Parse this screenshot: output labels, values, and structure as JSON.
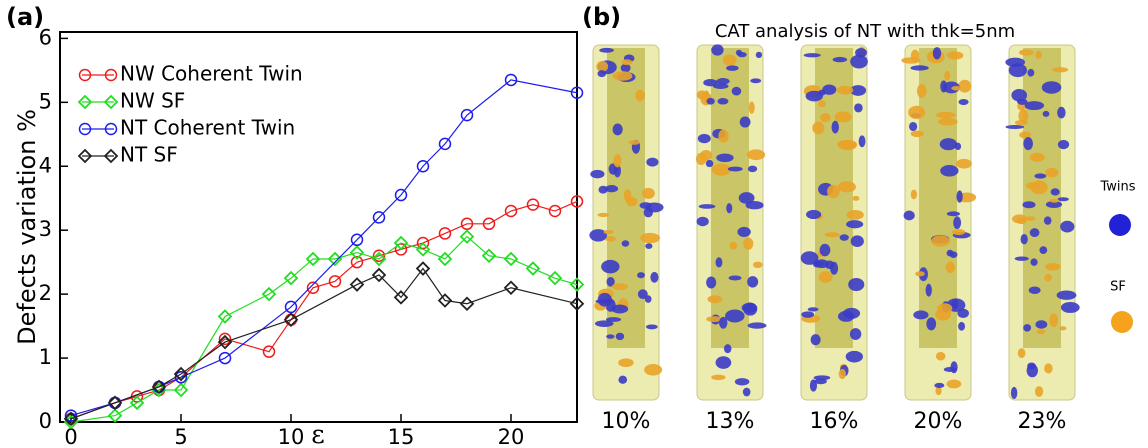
{
  "chart_data": {
    "type": "line",
    "label": "(a)",
    "xlabel": "ε",
    "ylabel": "Defects variation %",
    "xlim": [
      -0.5,
      23
    ],
    "ylim": [
      0,
      6.1
    ],
    "xticks": [
      0,
      5,
      10,
      15,
      20
    ],
    "yticks": [
      0,
      1,
      2,
      3,
      4,
      5,
      6
    ],
    "legend": "upper left",
    "series": [
      {
        "name": "NW Coherent Twin",
        "color": "#ee1c1c",
        "marker": "circle",
        "x": [
          0,
          2,
          3,
          4,
          5,
          7,
          9,
          10,
          11,
          12,
          13,
          14,
          15,
          16,
          17,
          18,
          19,
          20,
          21,
          22,
          23
        ],
        "values": [
          0.05,
          0.3,
          0.4,
          0.5,
          0.7,
          1.3,
          1.1,
          1.6,
          2.1,
          2.2,
          2.5,
          2.6,
          2.7,
          2.8,
          2.95,
          3.1,
          3.1,
          3.3,
          3.4,
          3.3,
          3.45
        ]
      },
      {
        "name": "NW SF",
        "color": "#22dd22",
        "marker": "diamond",
        "x": [
          0,
          2,
          3,
          4,
          5,
          7,
          9,
          10,
          11,
          12,
          13,
          14,
          15,
          16,
          17,
          18,
          19,
          20,
          21,
          22,
          23
        ],
        "values": [
          0,
          0.1,
          0.3,
          0.5,
          0.5,
          1.65,
          2.0,
          2.25,
          2.55,
          2.55,
          2.65,
          2.55,
          2.8,
          2.7,
          2.55,
          2.9,
          2.6,
          2.55,
          2.4,
          2.25,
          2.15
        ]
      },
      {
        "name": "NT Coherent Twin",
        "color": "#1c1cee",
        "marker": "circle",
        "x": [
          0,
          2,
          4,
          5,
          7,
          10,
          13,
          14,
          15,
          16,
          17,
          18,
          20,
          23
        ],
        "values": [
          0.1,
          0.3,
          0.55,
          0.7,
          1.0,
          1.8,
          2.85,
          3.2,
          3.55,
          4.0,
          4.35,
          4.8,
          5.35,
          5.15
        ]
      },
      {
        "name": "NT SF",
        "color": "#222222",
        "marker": "diamond",
        "x": [
          0,
          2,
          4,
          5,
          7,
          10,
          13,
          14,
          15,
          16,
          17,
          18,
          20,
          23
        ],
        "values": [
          0.05,
          0.3,
          0.55,
          0.75,
          1.25,
          1.6,
          2.15,
          2.3,
          1.95,
          2.4,
          1.9,
          1.85,
          2.1,
          1.85
        ]
      }
    ]
  },
  "panel_b": {
    "label": "(b)",
    "title": "CAT analysis of NT with thk=5nm",
    "columns": [
      "10%",
      "13%",
      "16%",
      "20%",
      "23%"
    ],
    "legend": [
      "Twins",
      "SF"
    ]
  }
}
